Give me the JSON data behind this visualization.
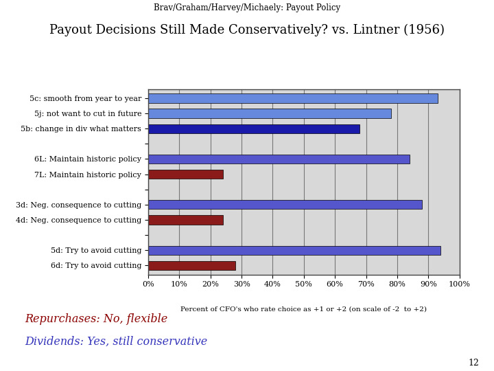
{
  "subtitle": "Brav/Graham/Harvey/Michaely: Payout Policy",
  "title": "Payout Decisions Still Made Conservatively? vs. Lintner (1956)",
  "categories": [
    "6d: Try to avoid cutting",
    "5d: Try to avoid cutting",
    "",
    "4d: Neg. consequence to cutting",
    "3d: Neg. consequence to cutting",
    "",
    "7L: Maintain historic policy",
    "6L: Maintain historic policy",
    "",
    "5b: change in div what matters",
    "5j: not want to cut in future",
    "5c: smooth from year to year"
  ],
  "values": [
    28,
    94,
    0,
    24,
    88,
    0,
    24,
    84,
    0,
    68,
    78,
    93
  ],
  "colors": [
    "#8b1a1a",
    "#5555cc",
    "#ffffff",
    "#8b1a1a",
    "#5555cc",
    "#ffffff",
    "#8b1a1a",
    "#5555cc",
    "#ffffff",
    "#1a1aaa",
    "#6688dd",
    "#6688dd"
  ],
  "xlabel": "Percent of CFO's who rate choice as +1 or +2 (on scale of -2  to +2)",
  "xlim": [
    0,
    100
  ],
  "xtick_labels": [
    "0%",
    "10%",
    "20%",
    "30%",
    "40%",
    "50%",
    "60%",
    "70%",
    "80%",
    "90%",
    "100%"
  ],
  "xtick_values": [
    0,
    10,
    20,
    30,
    40,
    50,
    60,
    70,
    80,
    90,
    100
  ],
  "annotation_repurchases": "Repurchases: No, flexible",
  "annotation_dividends": "Dividends: Yes, still conservative",
  "annotation_repurchases_color": "#8b0000",
  "annotation_dividends_color": "#3333bb",
  "slide_number": "12",
  "background_color": "#ffffff",
  "chart_bg_color": "#d8d8d8",
  "grid_color": "#777777",
  "border_color": "#444444"
}
